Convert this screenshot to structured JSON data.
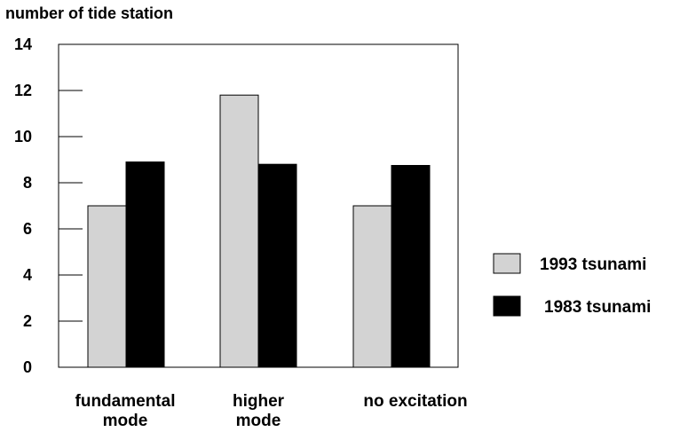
{
  "chart_data": {
    "type": "bar",
    "ylabel": "number of tide station",
    "categories": [
      [
        "fundamental",
        "mode"
      ],
      [
        "higher",
        "mode"
      ],
      [
        "no excitation"
      ]
    ],
    "ylim": [
      0,
      14
    ],
    "yticks": [
      0,
      2,
      4,
      6,
      8,
      10,
      12,
      14
    ],
    "grid": false,
    "legend_position": "right",
    "series": [
      {
        "name": "1993 tsunami",
        "color": "#d3d3d3",
        "values": [
          7.0,
          11.8,
          7.0
        ]
      },
      {
        "name": "1983 tsunami",
        "color": "#000000",
        "values": [
          8.9,
          8.8,
          8.75
        ]
      }
    ]
  }
}
